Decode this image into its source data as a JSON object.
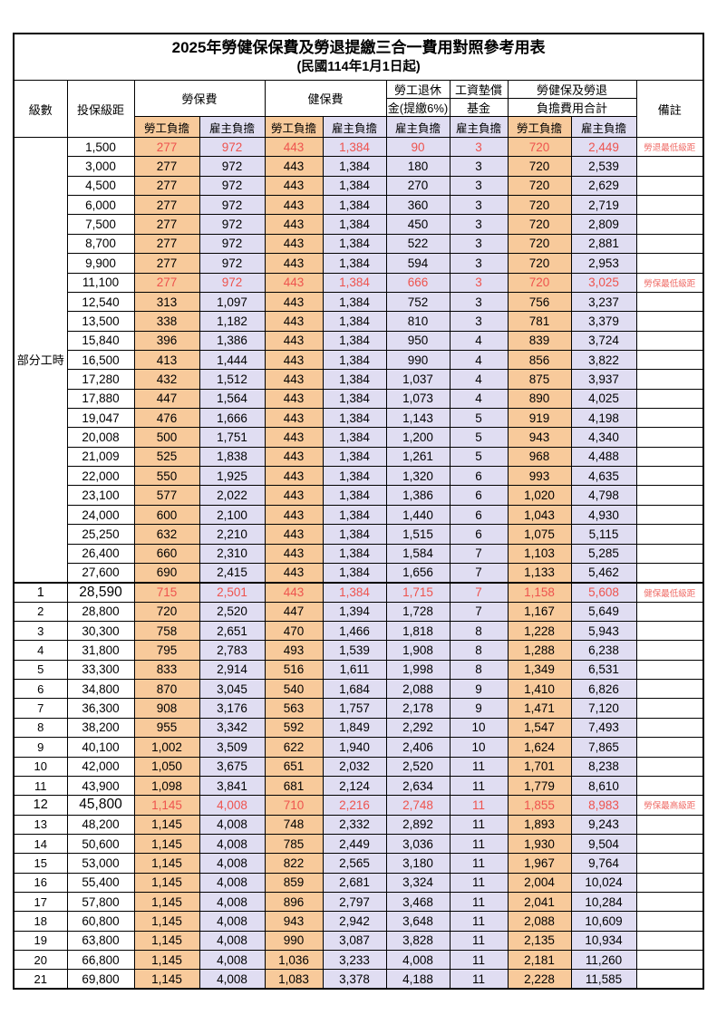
{
  "title": "2025年勞健保保費及勞退提繳三合一費用對照參考用表",
  "subtitle": "(民國114年1月1日起)",
  "columns": {
    "level": "級數",
    "bracket": "投保級距",
    "labor_group": "勞保費",
    "health_group": "健保費",
    "pension_line1": "勞工退休",
    "pension_line2": "金(提繳6%)",
    "fund_line1": "工資墊償",
    "fund_line2": "基金",
    "total_line1": "勞健保及勞退",
    "total_line2": "負擔費用合計",
    "note": "備註",
    "employee": "勞工負擔",
    "employer": "雇主負擔"
  },
  "part_time_label": "部分工時",
  "colors": {
    "employee_bg": "#F8CA9B",
    "employer_bg": "#E0DDF2",
    "highlight_text": "#EE534E",
    "note_text": "#EF6B66",
    "border": "#000000"
  },
  "rows": [
    {
      "level": "",
      "bracket": "1,500",
      "v": [
        "277",
        "972",
        "443",
        "1,384",
        "90",
        "3",
        "720",
        "2,449"
      ],
      "note": "勞退最低級距",
      "red": true
    },
    {
      "level": "",
      "bracket": "3,000",
      "v": [
        "277",
        "972",
        "443",
        "1,384",
        "180",
        "3",
        "720",
        "2,539"
      ],
      "note": ""
    },
    {
      "level": "",
      "bracket": "4,500",
      "v": [
        "277",
        "972",
        "443",
        "1,384",
        "270",
        "3",
        "720",
        "2,629"
      ],
      "note": ""
    },
    {
      "level": "",
      "bracket": "6,000",
      "v": [
        "277",
        "972",
        "443",
        "1,384",
        "360",
        "3",
        "720",
        "2,719"
      ],
      "note": ""
    },
    {
      "level": "",
      "bracket": "7,500",
      "v": [
        "277",
        "972",
        "443",
        "1,384",
        "450",
        "3",
        "720",
        "2,809"
      ],
      "note": ""
    },
    {
      "level": "",
      "bracket": "8,700",
      "v": [
        "277",
        "972",
        "443",
        "1,384",
        "522",
        "3",
        "720",
        "2,881"
      ],
      "note": ""
    },
    {
      "level": "",
      "bracket": "9,900",
      "v": [
        "277",
        "972",
        "443",
        "1,384",
        "594",
        "3",
        "720",
        "2,953"
      ],
      "note": ""
    },
    {
      "level": "",
      "bracket": "11,100",
      "v": [
        "277",
        "972",
        "443",
        "1,384",
        "666",
        "3",
        "720",
        "3,025"
      ],
      "note": "勞保最低級距",
      "red": true
    },
    {
      "level": "",
      "bracket": "12,540",
      "v": [
        "313",
        "1,097",
        "443",
        "1,384",
        "752",
        "3",
        "756",
        "3,237"
      ],
      "note": ""
    },
    {
      "level": "",
      "bracket": "13,500",
      "v": [
        "338",
        "1,182",
        "443",
        "1,384",
        "810",
        "3",
        "781",
        "3,379"
      ],
      "note": ""
    },
    {
      "level": "",
      "bracket": "15,840",
      "v": [
        "396",
        "1,386",
        "443",
        "1,384",
        "950",
        "4",
        "839",
        "3,724"
      ],
      "note": ""
    },
    {
      "level": "",
      "bracket": "16,500",
      "v": [
        "413",
        "1,444",
        "443",
        "1,384",
        "990",
        "4",
        "856",
        "3,822"
      ],
      "note": ""
    },
    {
      "level": "",
      "bracket": "17,280",
      "v": [
        "432",
        "1,512",
        "443",
        "1,384",
        "1,037",
        "4",
        "875",
        "3,937"
      ],
      "note": ""
    },
    {
      "level": "",
      "bracket": "17,880",
      "v": [
        "447",
        "1,564",
        "443",
        "1,384",
        "1,073",
        "4",
        "890",
        "4,025"
      ],
      "note": ""
    },
    {
      "level": "",
      "bracket": "19,047",
      "v": [
        "476",
        "1,666",
        "443",
        "1,384",
        "1,143",
        "5",
        "919",
        "4,198"
      ],
      "note": ""
    },
    {
      "level": "",
      "bracket": "20,008",
      "v": [
        "500",
        "1,751",
        "443",
        "1,384",
        "1,200",
        "5",
        "943",
        "4,340"
      ],
      "note": ""
    },
    {
      "level": "",
      "bracket": "21,009",
      "v": [
        "525",
        "1,838",
        "443",
        "1,384",
        "1,261",
        "5",
        "968",
        "4,488"
      ],
      "note": ""
    },
    {
      "level": "",
      "bracket": "22,000",
      "v": [
        "550",
        "1,925",
        "443",
        "1,384",
        "1,320",
        "6",
        "993",
        "4,635"
      ],
      "note": ""
    },
    {
      "level": "",
      "bracket": "23,100",
      "v": [
        "577",
        "2,022",
        "443",
        "1,384",
        "1,386",
        "6",
        "1,020",
        "4,798"
      ],
      "note": ""
    },
    {
      "level": "",
      "bracket": "24,000",
      "v": [
        "600",
        "2,100",
        "443",
        "1,384",
        "1,440",
        "6",
        "1,043",
        "4,930"
      ],
      "note": ""
    },
    {
      "level": "",
      "bracket": "25,250",
      "v": [
        "632",
        "2,210",
        "443",
        "1,384",
        "1,515",
        "6",
        "1,075",
        "5,115"
      ],
      "note": ""
    },
    {
      "level": "",
      "bracket": "26,400",
      "v": [
        "660",
        "2,310",
        "443",
        "1,384",
        "1,584",
        "7",
        "1,103",
        "5,285"
      ],
      "note": ""
    },
    {
      "level": "",
      "bracket": "27,600",
      "v": [
        "690",
        "2,415",
        "443",
        "1,384",
        "1,656",
        "7",
        "1,133",
        "5,462"
      ],
      "note": ""
    },
    {
      "level": "1",
      "bracket": "28,590",
      "v": [
        "715",
        "2,501",
        "443",
        "1,384",
        "1,715",
        "7",
        "1,158",
        "5,608"
      ],
      "note": "健保最低級距",
      "red": true,
      "em": true
    },
    {
      "level": "2",
      "bracket": "28,800",
      "v": [
        "720",
        "2,520",
        "447",
        "1,394",
        "1,728",
        "7",
        "1,167",
        "5,649"
      ],
      "note": ""
    },
    {
      "level": "3",
      "bracket": "30,300",
      "v": [
        "758",
        "2,651",
        "470",
        "1,466",
        "1,818",
        "8",
        "1,228",
        "5,943"
      ],
      "note": ""
    },
    {
      "level": "4",
      "bracket": "31,800",
      "v": [
        "795",
        "2,783",
        "493",
        "1,539",
        "1,908",
        "8",
        "1,288",
        "6,238"
      ],
      "note": ""
    },
    {
      "level": "5",
      "bracket": "33,300",
      "v": [
        "833",
        "2,914",
        "516",
        "1,611",
        "1,998",
        "8",
        "1,349",
        "6,531"
      ],
      "note": ""
    },
    {
      "level": "6",
      "bracket": "34,800",
      "v": [
        "870",
        "3,045",
        "540",
        "1,684",
        "2,088",
        "9",
        "1,410",
        "6,826"
      ],
      "note": ""
    },
    {
      "level": "7",
      "bracket": "36,300",
      "v": [
        "908",
        "3,176",
        "563",
        "1,757",
        "2,178",
        "9",
        "1,471",
        "7,120"
      ],
      "note": ""
    },
    {
      "level": "8",
      "bracket": "38,200",
      "v": [
        "955",
        "3,342",
        "592",
        "1,849",
        "2,292",
        "10",
        "1,547",
        "7,493"
      ],
      "note": ""
    },
    {
      "level": "9",
      "bracket": "40,100",
      "v": [
        "1,002",
        "3,509",
        "622",
        "1,940",
        "2,406",
        "10",
        "1,624",
        "7,865"
      ],
      "note": ""
    },
    {
      "level": "10",
      "bracket": "42,000",
      "v": [
        "1,050",
        "3,675",
        "651",
        "2,032",
        "2,520",
        "11",
        "1,701",
        "8,238"
      ],
      "note": ""
    },
    {
      "level": "11",
      "bracket": "43,900",
      "v": [
        "1,098",
        "3,841",
        "681",
        "2,124",
        "2,634",
        "11",
        "1,779",
        "8,610"
      ],
      "note": ""
    },
    {
      "level": "12",
      "bracket": "45,800",
      "v": [
        "1,145",
        "4,008",
        "710",
        "2,216",
        "2,748",
        "11",
        "1,855",
        "8,983"
      ],
      "note": "勞保最高級距",
      "red": true,
      "em": true
    },
    {
      "level": "13",
      "bracket": "48,200",
      "v": [
        "1,145",
        "4,008",
        "748",
        "2,332",
        "2,892",
        "11",
        "1,893",
        "9,243"
      ],
      "note": ""
    },
    {
      "level": "14",
      "bracket": "50,600",
      "v": [
        "1,145",
        "4,008",
        "785",
        "2,449",
        "3,036",
        "11",
        "1,930",
        "9,504"
      ],
      "note": ""
    },
    {
      "level": "15",
      "bracket": "53,000",
      "v": [
        "1,145",
        "4,008",
        "822",
        "2,565",
        "3,180",
        "11",
        "1,967",
        "9,764"
      ],
      "note": ""
    },
    {
      "level": "16",
      "bracket": "55,400",
      "v": [
        "1,145",
        "4,008",
        "859",
        "2,681",
        "3,324",
        "11",
        "2,004",
        "10,024"
      ],
      "note": ""
    },
    {
      "level": "17",
      "bracket": "57,800",
      "v": [
        "1,145",
        "4,008",
        "896",
        "2,797",
        "3,468",
        "11",
        "2,041",
        "10,284"
      ],
      "note": ""
    },
    {
      "level": "18",
      "bracket": "60,800",
      "v": [
        "1,145",
        "4,008",
        "943",
        "2,942",
        "3,648",
        "11",
        "2,088",
        "10,609"
      ],
      "note": ""
    },
    {
      "level": "19",
      "bracket": "63,800",
      "v": [
        "1,145",
        "4,008",
        "990",
        "3,087",
        "3,828",
        "11",
        "2,135",
        "10,934"
      ],
      "note": ""
    },
    {
      "level": "20",
      "bracket": "66,800",
      "v": [
        "1,145",
        "4,008",
        "1,036",
        "3,233",
        "4,008",
        "11",
        "2,181",
        "11,260"
      ],
      "note": ""
    },
    {
      "level": "21",
      "bracket": "69,800",
      "v": [
        "1,145",
        "4,008",
        "1,083",
        "3,378",
        "4,188",
        "11",
        "2,228",
        "11,585"
      ],
      "note": ""
    }
  ]
}
